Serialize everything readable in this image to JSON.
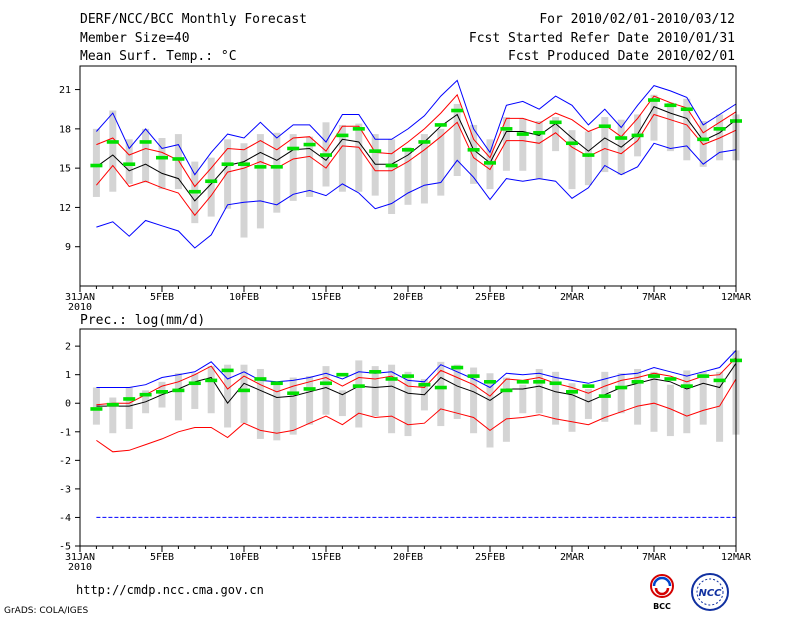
{
  "header": {
    "title": "DERF/NCC/BCC Monthly Forecast",
    "member_size": "Member Size=40",
    "variable": "Mean Surf. Temp.: °C",
    "period": "For 2010/02/01-2010/03/12",
    "fcst_started": "Fcst Started Refer Date 2010/01/31",
    "fcst_produced": "Fcst Produced Date 2010/02/01"
  },
  "footer": {
    "url": "http://cmdp.ncc.cma.gov.cn",
    "credit": "GrADS: COLA/IGES"
  },
  "logos": {
    "bcc": "BCC",
    "ncc": "NCC"
  },
  "colors": {
    "max_line": "#0000ff",
    "spread_line": "#ff0000",
    "mean_line": "#000000",
    "observed_bar": "#00e000",
    "obs_range_bar": "#d4d4d4"
  },
  "chart_data": [
    {
      "type": "line",
      "title": "Mean Surf. Temp.: °C",
      "xlabel": "",
      "ylabel": "",
      "ylim": [
        6,
        22.8
      ],
      "yticks": [
        9,
        12,
        15,
        18,
        21
      ],
      "xlim": [
        1,
        41
      ],
      "xticks": [
        {
          "x": 1,
          "label": "31JAN",
          "sub": "2010"
        },
        {
          "x": 6,
          "label": "5FEB"
        },
        {
          "x": 11,
          "label": "10FEB"
        },
        {
          "x": 16,
          "label": "15FEB"
        },
        {
          "x": 21,
          "label": "20FEB"
        },
        {
          "x": 26,
          "label": "25FEB"
        },
        {
          "x": 31,
          "label": "2MAR"
        },
        {
          "x": 36,
          "label": "7MAR"
        },
        {
          "x": 41,
          "label": "12MAR"
        }
      ],
      "x": [
        2,
        3,
        4,
        5,
        6,
        7,
        8,
        9,
        10,
        11,
        12,
        13,
        14,
        15,
        16,
        17,
        18,
        19,
        20,
        21,
        22,
        23,
        24,
        25,
        26,
        27,
        28,
        29,
        30,
        31,
        32,
        33,
        34,
        35,
        36,
        37,
        38,
        39,
        40,
        41
      ],
      "series": [
        {
          "name": "max",
          "color": "#0000ff",
          "values": [
            17.8,
            19.2,
            16.5,
            18.0,
            16.5,
            16.8,
            14.5,
            16.2,
            17.6,
            17.3,
            18.5,
            17.3,
            18.3,
            18.3,
            17.0,
            19.1,
            19.1,
            17.2,
            17.2,
            18.0,
            19.0,
            20.5,
            21.7,
            18.0,
            16.2,
            19.8,
            20.1,
            19.5,
            20.5,
            19.8,
            18.3,
            19.5,
            18.1,
            19.8,
            21.3,
            20.9,
            20.4,
            18.3,
            19.1,
            19.9
          ]
        },
        {
          "name": "upper",
          "color": "#ff0000",
          "values": [
            16.8,
            17.3,
            16.0,
            16.5,
            16.2,
            15.6,
            13.6,
            15.0,
            16.5,
            16.4,
            17.1,
            16.4,
            17.3,
            17.4,
            16.3,
            18.2,
            18.2,
            16.2,
            16.1,
            17.0,
            18.0,
            19.2,
            20.6,
            17.2,
            15.8,
            18.8,
            18.8,
            18.4,
            19.2,
            18.7,
            17.8,
            18.3,
            17.4,
            18.8,
            20.5,
            20.0,
            19.6,
            17.7,
            18.5,
            19.3
          ]
        },
        {
          "name": "mean",
          "color": "#000000",
          "values": [
            15.1,
            16.0,
            14.8,
            15.3,
            14.6,
            14.2,
            12.5,
            13.8,
            15.2,
            15.5,
            16.2,
            15.6,
            16.4,
            16.5,
            15.6,
            17.2,
            17.0,
            15.3,
            15.3,
            16.0,
            17.0,
            18.2,
            19.1,
            16.4,
            15.4,
            17.8,
            17.8,
            17.5,
            18.4,
            17.3,
            16.3,
            17.3,
            16.6,
            17.6,
            19.7,
            19.2,
            18.8,
            17.1,
            17.7,
            18.7
          ]
        },
        {
          "name": "lower",
          "color": "#ff0000",
          "values": [
            13.7,
            15.2,
            13.6,
            14.0,
            13.5,
            13.1,
            11.4,
            12.9,
            14.7,
            15.0,
            15.5,
            15.0,
            15.7,
            15.9,
            15.0,
            16.7,
            16.6,
            14.8,
            14.8,
            15.5,
            16.4,
            17.4,
            18.5,
            15.8,
            14.9,
            17.1,
            17.1,
            16.9,
            17.7,
            16.6,
            15.9,
            16.5,
            16.1,
            17.1,
            19.1,
            18.7,
            18.3,
            16.8,
            17.3,
            17.9
          ]
        },
        {
          "name": "min",
          "color": "#0000ff",
          "values": [
            10.5,
            10.9,
            9.8,
            11.0,
            10.6,
            10.2,
            8.9,
            9.9,
            12.2,
            12.4,
            12.5,
            12.2,
            13.0,
            13.3,
            12.9,
            13.8,
            13.1,
            11.9,
            12.3,
            13.1,
            13.7,
            13.9,
            15.6,
            14.3,
            12.6,
            14.2,
            14.0,
            14.2,
            14.0,
            12.7,
            13.5,
            15.2,
            14.5,
            15.1,
            16.9,
            16.5,
            16.7,
            15.3,
            16.2,
            16.4
          ]
        }
      ],
      "observed": {
        "name": "observed",
        "color": "#00e000",
        "values": [
          15.2,
          17.0,
          15.3,
          17.0,
          15.8,
          15.7,
          13.2,
          14.0,
          15.3,
          15.3,
          15.1,
          15.1,
          16.5,
          16.8,
          16.0,
          17.5,
          18.0,
          16.3,
          15.2,
          16.4,
          17.0,
          18.3,
          19.4,
          16.4,
          15.4,
          18.0,
          17.6,
          17.7,
          18.5,
          16.9,
          16.0,
          18.2,
          17.3,
          17.5,
          20.2,
          19.8,
          19.5,
          17.2,
          18.0,
          18.6
        ]
      },
      "obs_range": [
        [
          12.8,
          18.0
        ],
        [
          13.2,
          19.4
        ],
        [
          13.8,
          17.2
        ],
        [
          13.9,
          18.0
        ],
        [
          13.4,
          17.3
        ],
        [
          13.4,
          17.6
        ],
        [
          10.8,
          15.5
        ],
        [
          11.3,
          15.8
        ],
        [
          11.9,
          17.2
        ],
        [
          9.7,
          16.9
        ],
        [
          10.4,
          17.6
        ],
        [
          11.6,
          17.7
        ],
        [
          12.5,
          17.6
        ],
        [
          12.8,
          17.4
        ],
        [
          13.6,
          18.5
        ],
        [
          13.2,
          18.3
        ],
        [
          13.2,
          18.4
        ],
        [
          12.9,
          17.6
        ],
        [
          11.5,
          17.2
        ],
        [
          12.2,
          16.6
        ],
        [
          12.3,
          17.6
        ],
        [
          12.9,
          18.0
        ],
        [
          14.4,
          19.9
        ],
        [
          13.8,
          18.3
        ],
        [
          13.4,
          17.2
        ],
        [
          14.8,
          18.9
        ],
        [
          14.8,
          18.8
        ],
        [
          14.2,
          18.6
        ],
        [
          16.3,
          18.9
        ],
        [
          13.4,
          17.9
        ],
        [
          13.7,
          17.8
        ],
        [
          14.7,
          18.9
        ],
        [
          14.5,
          18.7
        ],
        [
          15.9,
          19.1
        ],
        [
          17.1,
          20.6
        ],
        [
          16.3,
          20.0
        ],
        [
          15.6,
          20.3
        ],
        [
          15.1,
          18.6
        ],
        [
          15.6,
          19.1
        ],
        [
          15.6,
          19.1
        ]
      ]
    },
    {
      "type": "line",
      "title": "Prec.: log(mm/d)",
      "xlabel": "",
      "ylabel": "",
      "ylim": [
        -5,
        2.6
      ],
      "yticks": [
        -5,
        -4,
        -3,
        -2,
        -1,
        0,
        1,
        2
      ],
      "xlim": [
        1,
        41
      ],
      "xticks": [
        {
          "x": 1,
          "label": "31JAN",
          "sub": "2010"
        },
        {
          "x": 6,
          "label": "5FEB"
        },
        {
          "x": 11,
          "label": "10FEB"
        },
        {
          "x": 16,
          "label": "15FEB"
        },
        {
          "x": 21,
          "label": "20FEB"
        },
        {
          "x": 26,
          "label": "25FEB"
        },
        {
          "x": 31,
          "label": "2MAR"
        },
        {
          "x": 36,
          "label": "7MAR"
        },
        {
          "x": 41,
          "label": "12MAR"
        }
      ],
      "x": [
        2,
        3,
        4,
        5,
        6,
        7,
        8,
        9,
        10,
        11,
        12,
        13,
        14,
        15,
        16,
        17,
        18,
        19,
        20,
        21,
        22,
        23,
        24,
        25,
        26,
        27,
        28,
        29,
        30,
        31,
        32,
        33,
        34,
        35,
        36,
        37,
        38,
        39,
        40,
        41
      ],
      "series": [
        {
          "name": "max",
          "color": "#0000ff",
          "values": [
            0.55,
            0.55,
            0.55,
            0.65,
            0.9,
            1.0,
            1.1,
            1.45,
            0.85,
            1.1,
            0.8,
            0.75,
            0.8,
            0.9,
            1.05,
            0.85,
            1.1,
            1.05,
            1.1,
            0.8,
            0.75,
            1.35,
            1.1,
            0.85,
            0.55,
            1.05,
            1.0,
            1.05,
            0.9,
            0.8,
            0.7,
            0.85,
            1.0,
            1.05,
            1.25,
            1.1,
            0.95,
            1.1,
            1.25,
            1.85
          ]
        },
        {
          "name": "upper",
          "color": "#ff0000",
          "values": [
            -0.05,
            0.0,
            0.0,
            0.3,
            0.6,
            0.75,
            1.0,
            1.3,
            0.5,
            0.95,
            0.65,
            0.4,
            0.6,
            0.75,
            0.9,
            0.6,
            0.9,
            0.85,
            0.95,
            0.6,
            0.55,
            1.15,
            0.9,
            0.65,
            0.25,
            0.85,
            0.8,
            0.9,
            0.7,
            0.55,
            0.35,
            0.6,
            0.8,
            0.9,
            1.05,
            0.95,
            0.75,
            0.95,
            1.0,
            1.6
          ]
        },
        {
          "name": "mean",
          "color": "#000000",
          "values": [
            -0.1,
            -0.1,
            -0.1,
            0.05,
            0.3,
            0.5,
            0.75,
            0.9,
            0.0,
            0.7,
            0.45,
            0.2,
            0.25,
            0.4,
            0.55,
            0.3,
            0.6,
            0.55,
            0.6,
            0.35,
            0.3,
            0.9,
            0.6,
            0.4,
            0.1,
            0.5,
            0.5,
            0.6,
            0.4,
            0.3,
            0.05,
            0.3,
            0.55,
            0.7,
            0.85,
            0.75,
            0.5,
            0.7,
            0.55,
            1.4
          ]
        },
        {
          "name": "lower",
          "color": "#ff0000",
          "values": [
            -1.3,
            -1.7,
            -1.65,
            -1.45,
            -1.25,
            -1.0,
            -0.85,
            -0.85,
            -1.2,
            -0.7,
            -0.95,
            -1.05,
            -0.95,
            -0.7,
            -0.45,
            -0.75,
            -0.35,
            -0.5,
            -0.45,
            -0.75,
            -0.7,
            -0.2,
            -0.35,
            -0.5,
            -0.95,
            -0.55,
            -0.5,
            -0.4,
            -0.55,
            -0.65,
            -0.75,
            -0.5,
            -0.3,
            -0.1,
            0.0,
            -0.2,
            -0.45,
            -0.25,
            -0.1,
            0.85
          ]
        },
        {
          "name": "min",
          "color": "#0000ff",
          "values": [
            -4,
            -4,
            -4,
            -4,
            -4,
            -4,
            -4,
            -4,
            -4,
            -4,
            -4,
            -4,
            -4,
            -4,
            -4,
            -4,
            -4,
            -4,
            -4,
            -4,
            -4,
            -4,
            -4,
            -4,
            -4,
            -4,
            -4,
            -4,
            -4,
            -4,
            -4,
            -4,
            -4,
            -4,
            -4,
            -4,
            -4,
            -4,
            -4,
            -4
          ]
        }
      ],
      "observed": {
        "name": "observed",
        "color": "#00e000",
        "values": [
          -0.2,
          -0.05,
          0.15,
          0.3,
          0.4,
          0.45,
          0.7,
          0.8,
          1.15,
          0.45,
          0.85,
          0.7,
          0.35,
          0.5,
          0.7,
          1.0,
          0.6,
          1.1,
          0.85,
          0.95,
          0.65,
          0.55,
          1.25,
          0.95,
          0.75,
          0.45,
          0.75,
          0.75,
          0.7,
          0.4,
          0.6,
          0.25,
          0.55,
          0.75,
          0.95,
          0.85,
          0.6,
          0.95,
          0.8,
          1.5
        ]
      },
      "obs_range": [
        [
          -0.75,
          0.55
        ],
        [
          -1.05,
          0.2
        ],
        [
          -0.9,
          0.55
        ],
        [
          -0.35,
          0.45
        ],
        [
          -0.15,
          0.75
        ],
        [
          -0.6,
          1.05
        ],
        [
          -0.2,
          1.05
        ],
        [
          -0.35,
          1.3
        ],
        [
          -0.85,
          1.35
        ],
        [
          -0.7,
          1.35
        ],
        [
          -1.25,
          1.2
        ],
        [
          -1.3,
          0.7
        ],
        [
          -1.1,
          0.9
        ],
        [
          -0.75,
          0.95
        ],
        [
          -0.4,
          1.3
        ],
        [
          -0.45,
          0.45
        ],
        [
          -0.85,
          1.5
        ],
        [
          -0.45,
          1.3
        ],
        [
          -1.05,
          1.35
        ],
        [
          -1.15,
          1.1
        ],
        [
          -0.25,
          0.85
        ],
        [
          -0.8,
          1.45
        ],
        [
          -0.55,
          1.35
        ],
        [
          -1.05,
          1.25
        ],
        [
          -1.55,
          1.05
        ],
        [
          -1.35,
          0.9
        ],
        [
          -0.35,
          0.65
        ],
        [
          -0.35,
          1.2
        ],
        [
          -0.75,
          1.1
        ],
        [
          -1.0,
          0.7
        ],
        [
          -0.55,
          0.5
        ],
        [
          -0.65,
          1.1
        ],
        [
          -0.35,
          1.05
        ],
        [
          -0.75,
          1.2
        ],
        [
          -1.0,
          1.1
        ],
        [
          -1.15,
          0.65
        ],
        [
          -1.05,
          1.15
        ],
        [
          -0.75,
          1.1
        ],
        [
          -1.35,
          1.1
        ],
        [
          -1.1,
          1.85
        ]
      ]
    }
  ]
}
